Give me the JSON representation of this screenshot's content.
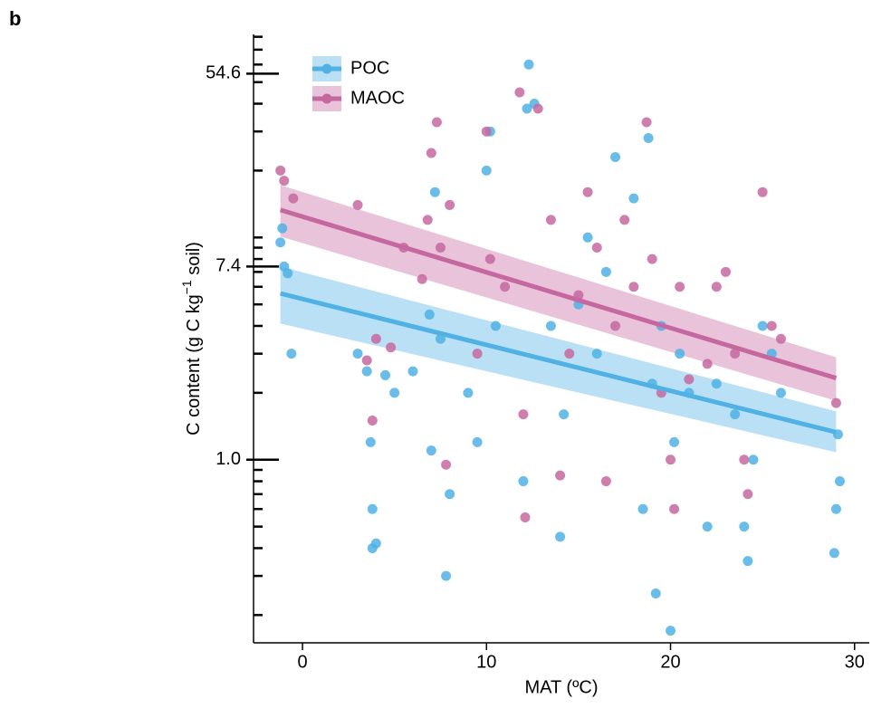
{
  "panel_label": "b",
  "chart_data": {
    "type": "scatter",
    "x_label": "MAT (ºC)",
    "y_label": {
      "before": "C content (g C kg",
      "sup": "−1",
      "after": " soil)"
    },
    "xlim": [
      -2.66,
      30.8
    ],
    "xticks": [
      0,
      10,
      20,
      30
    ],
    "ylim": [
      0.15,
      82
    ],
    "y_log": true,
    "yticks": [
      54.6,
      7.4,
      {
        "value": 1,
        "label": "1.0"
      }
    ],
    "minor_yticks": [
      0.2,
      0.3,
      0.4,
      0.5,
      0.6,
      0.7,
      0.8,
      0.9,
      2,
      3,
      4,
      5,
      6,
      7,
      8,
      9,
      10,
      20,
      30,
      40,
      50,
      60,
      70,
      80
    ],
    "grid": false,
    "legend_position": "top-left",
    "series": [
      {
        "name": "POC",
        "color": "#4fb1e4",
        "x": [
          -1.2,
          -1,
          -0.8,
          -0.6,
          -1.1,
          3,
          3.5,
          3.7,
          3.8,
          3.8,
          4,
          4.5,
          5,
          6,
          6.9,
          7,
          7.2,
          7.5,
          7.8,
          8,
          9,
          9.5,
          10,
          10.2,
          10.5,
          12,
          12.2,
          12.3,
          12.6,
          13.5,
          14,
          14.2,
          15,
          15.5,
          16,
          16.5,
          17,
          18,
          18.5,
          18.8,
          19,
          19.2,
          19.5,
          20,
          20.2,
          20.5,
          21,
          22,
          22.5,
          23.5,
          24,
          24.2,
          24.5,
          25,
          25.5,
          26,
          28.9,
          29,
          29.2,
          29.1
        ],
        "values": [
          9.5,
          7.4,
          6.9,
          3,
          11,
          3,
          2.5,
          1.2,
          0.6,
          0.4,
          0.42,
          2.4,
          2,
          2.5,
          4.5,
          1.1,
          16,
          3.5,
          0.3,
          0.7,
          2,
          1.2,
          20,
          30,
          4,
          0.8,
          38,
          60,
          40,
          4,
          0.45,
          1.6,
          5,
          10,
          3,
          7,
          23,
          15,
          0.6,
          28,
          2.2,
          0.25,
          4,
          0.17,
          1.2,
          3,
          2,
          0.5,
          2.2,
          1.6,
          0.5,
          0.35,
          1,
          4,
          3,
          2,
          0.38,
          0.6,
          0.8,
          1.3
        ],
        "fit": {
          "x": [
            -1.2,
            29
          ],
          "y": [
            5.6,
            1.33
          ],
          "lower": [
            4.1,
            1.08
          ],
          "upper": [
            7.4,
            1.65
          ]
        }
      },
      {
        "name": "MAOC",
        "color": "#c5689f",
        "x": [
          -1.2,
          -1,
          -0.5,
          3,
          3.5,
          3.8,
          4,
          4.8,
          5.5,
          6.5,
          6.8,
          7,
          7.3,
          7.5,
          7.8,
          8,
          9.5,
          10,
          10.2,
          11,
          11.8,
          12,
          12.1,
          12.8,
          13.5,
          14,
          14.5,
          15,
          15.5,
          16,
          16.5,
          17,
          17.5,
          18,
          18.7,
          19,
          19.5,
          20,
          20.2,
          20.5,
          21,
          22,
          22.5,
          23,
          23.5,
          24,
          24.2,
          25,
          25.5,
          26,
          29
        ],
        "values": [
          20,
          18,
          15,
          14,
          2.8,
          1.5,
          3.5,
          3.2,
          9,
          6.5,
          12,
          24,
          33,
          9,
          0.95,
          14,
          3,
          30,
          8,
          6,
          45,
          1.6,
          0.55,
          38,
          12,
          0.85,
          3,
          5.5,
          16,
          9,
          0.8,
          4,
          12,
          6,
          33,
          8,
          2,
          1,
          0.6,
          6,
          2.3,
          2.7,
          6,
          7,
          3,
          1,
          0.7,
          16,
          4,
          3.5,
          1.8
        ],
        "fit": {
          "x": [
            -1.2,
            29
          ],
          "y": [
            13.3,
            2.33
          ],
          "lower": [
            10.1,
            1.84
          ],
          "upper": [
            17.2,
            2.89
          ]
        }
      }
    ]
  }
}
